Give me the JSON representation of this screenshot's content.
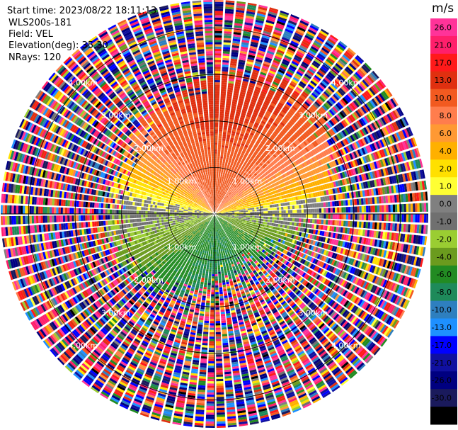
{
  "chart_data": {
    "type": "ppi",
    "info": {
      "start_time": "Start time: 2023/08/22 18:11:13",
      "site": "WLS200s-181",
      "field": "Field: VEL",
      "elevation": "Elevation(deg): 35.30",
      "nrays": "NRays: 120"
    },
    "range_rings_km": [
      1.0,
      2.0,
      3.0,
      4.0
    ],
    "ring_labels": [
      "1.00km",
      "2.00km",
      "3.00km",
      "4.00km"
    ],
    "max_range_km": 4.6,
    "n_rays": 120,
    "velocity_field_description": {
      "north": 15.0,
      "east_north": 3.0,
      "south": -7.0,
      "southeast": -8.5,
      "near_zero_band": 0.5
    },
    "colorbar": {
      "unit": "m/s",
      "bounds": [
        26.0,
        21.0,
        17.0,
        13.0,
        10.0,
        8.0,
        6.0,
        4.0,
        2.0,
        1.0,
        0.0,
        -1.0,
        -2.0,
        -4.0,
        -6.0,
        -8.0,
        -10.0,
        -13.0,
        -17.0,
        -21.0,
        -26.0,
        -30.0
      ],
      "tick_labels": [
        "26.0",
        "21.0",
        "17.0",
        "13.0",
        "10.0",
        "8.0",
        "6.0",
        "4.0",
        "2.0",
        "1.0",
        "0.0",
        "-1.0",
        "-2.0",
        "-4.0",
        "-6.0",
        "-8.0",
        "-10.0",
        "-13.0",
        "-17.0",
        "-21.0",
        "-26.0",
        "-30.0"
      ],
      "colors": [
        "#ff3399",
        "#ff1f6b",
        "#ff1a1a",
        "#e03010",
        "#f25a20",
        "#ff7d4d",
        "#ff9933",
        "#ffb000",
        "#ffe000",
        "#ffff33",
        "#808080",
        "#707070",
        "#9acd32",
        "#6b9b1e",
        "#228b22",
        "#1e8a5a",
        "#2e7fbf",
        "#1e90ff",
        "#0000ff",
        "#1010a0",
        "#000080",
        "#1a1a5c",
        "#000000"
      ]
    }
  }
}
